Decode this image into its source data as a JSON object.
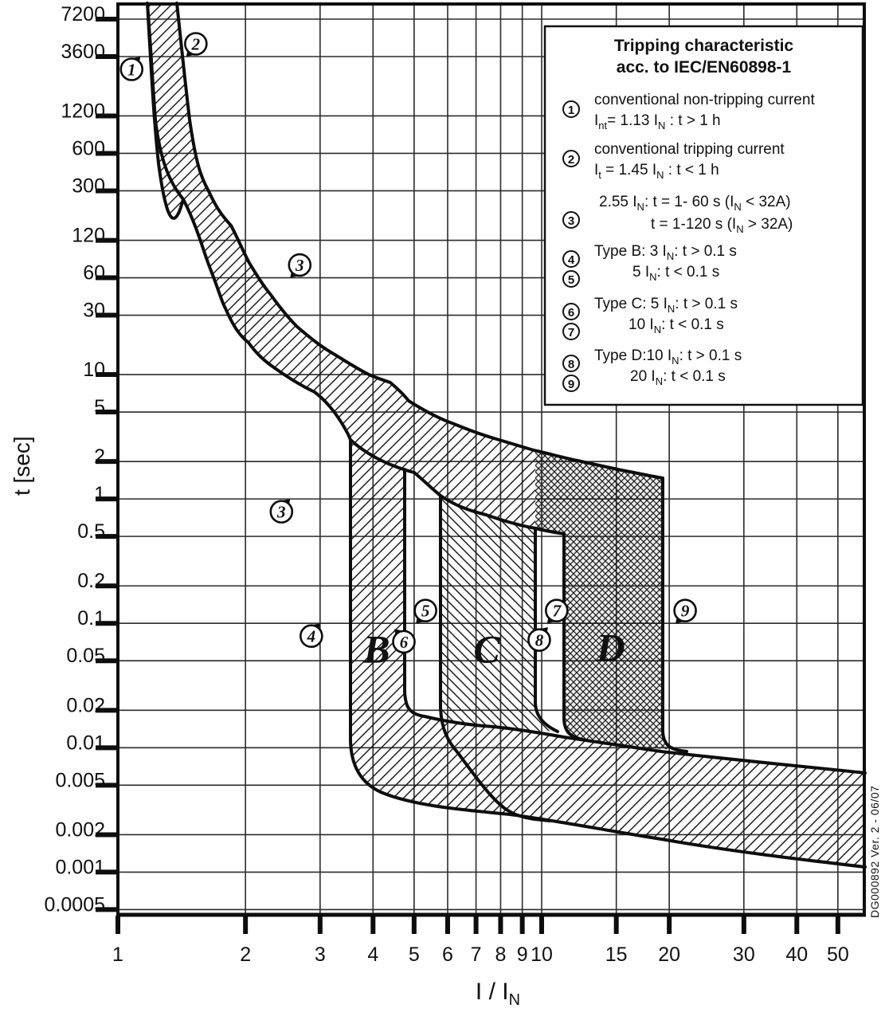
{
  "labels": {
    "y_axis_title": "t [sec]",
    "x_axis_title": "I / I[N]",
    "doc_ref": "DG000892 Ver. 2 - 06/07"
  },
  "legend": {
    "title_lines": [
      "Tripping characteristic",
      "acc. to IEC/EN60898-1"
    ],
    "items": [
      {
        "num": "1",
        "lines": [
          "conventional non-tripping current",
          "I[nt]= 1.13 I[N] : t > 1 h"
        ]
      },
      {
        "num": "2",
        "lines": [
          "conventional tripping current",
          "I[t] = 1.45 I[N] : t < 1 h"
        ]
      },
      {
        "num": "3",
        "lines": [
          "2.55 I[N]: t = 1- 60 s (I[N] < 32A)",
          "t = 1-120 s (I[N] > 32A)"
        ]
      },
      {
        "num": "4",
        "lines": [
          "Type B: 3 I[N]: t > 0.1 s"
        ]
      },
      {
        "num": "5",
        "lines": [
          "5 I[N]: t < 0.1 s"
        ]
      },
      {
        "num": "6",
        "lines": [
          "Type C: 5 I[N]: t > 0.1 s"
        ]
      },
      {
        "num": "7",
        "lines": [
          "10 I[N]: t < 0.1 s"
        ]
      },
      {
        "num": "8",
        "lines": [
          "Type D:10 I[N]: t > 0.1 s"
        ]
      },
      {
        "num": "9",
        "lines": [
          "20 I[N]: t < 0.1 s"
        ]
      }
    ]
  },
  "chart_data": {
    "type": "area",
    "title": "Tripping characteristic acc. to IEC/EN60898-1",
    "grid": "on",
    "x_axis": {
      "label": "I / I_N",
      "scale": "log",
      "range": [
        1,
        57
      ],
      "ticks": [
        "1",
        "2",
        "3",
        "4",
        "5",
        "6",
        "7",
        "8",
        "9",
        "10",
        "15",
        "20",
        "30",
        "40",
        "50"
      ]
    },
    "y_axis": {
      "label": "t [sec]",
      "scale": "log",
      "range": [
        0.0004,
        12000
      ],
      "ticks": [
        "7200",
        "3600",
        "1200",
        "600",
        "300",
        "120",
        "60",
        "30",
        "10",
        "5",
        "2",
        "1",
        "0.5",
        "0.2",
        "0.1",
        "0.05",
        "0.02",
        "0.01",
        "0.005",
        "0.002",
        "0.001",
        "0.0005"
      ]
    },
    "series": [
      {
        "name": "thermal band upper limit (1.45 I_N)",
        "points": [
          [
            1.39,
            7200
          ],
          [
            1.47,
            1500
          ],
          [
            1.64,
            300
          ],
          [
            2.04,
            77
          ],
          [
            2.3,
            43
          ],
          [
            2.65,
            24
          ],
          [
            3.2,
            15
          ],
          [
            3.9,
            10
          ],
          [
            4.4,
            8.8
          ],
          [
            4.85,
            6.3
          ],
          [
            6.2,
            4.1
          ],
          [
            7.7,
            3.1
          ],
          [
            9.6,
            2.5
          ],
          [
            12.1,
            2.1
          ],
          [
            15.4,
            1.8
          ],
          [
            19.3,
            1.5
          ]
        ]
      },
      {
        "name": "thermal band lower limit (1.13 I_N)",
        "points": [
          [
            1.18,
            7200
          ],
          [
            1.21,
            1300
          ],
          [
            1.43,
            255
          ],
          [
            1.66,
            66
          ],
          [
            1.8,
            33
          ],
          [
            2.03,
            18
          ],
          [
            2.35,
            11
          ],
          [
            2.9,
            7.2
          ],
          [
            3.5,
            3.0
          ],
          [
            5.0,
            1.6
          ],
          [
            5.8,
            1.06
          ],
          [
            7.4,
            0.74
          ],
          [
            9.7,
            0.57
          ],
          [
            11.3,
            0.52
          ]
        ]
      },
      {
        "name": "Type B instantaneous limits",
        "lower_drop_at": 3.5,
        "upper_drop_at": 4.7,
        "lower_floor": [
          [
            3.5,
            0.011
          ],
          [
            5.0,
            0.004
          ],
          [
            10,
            0.0028
          ],
          [
            57,
            0.0011
          ]
        ],
        "upper_floor": [
          [
            4.7,
            0.028
          ],
          [
            7.7,
            0.0146
          ],
          [
            19,
            0.0092
          ],
          [
            57,
            0.0062
          ]
        ]
      },
      {
        "name": "Type C instantaneous limits",
        "lower_drop_at": 5.8,
        "upper_drop_at": 9.7
      },
      {
        "name": "Type D instantaneous limits",
        "lower_drop_at": 11.3,
        "upper_drop_at": 19.3
      }
    ],
    "hatches": {
      "thermal_and_B": "/",
      "type_C": "\\",
      "type_D": "cross"
    },
    "markers": [
      {
        "label": "1",
        "I": 1.13,
        "t": 3600,
        "orient": "NE"
      },
      {
        "label": "2",
        "I": 1.45,
        "t": 3600,
        "orient": "SW"
      },
      {
        "label": "3",
        "I": 2.55,
        "t": 60,
        "orient": "SW"
      },
      {
        "label": "3",
        "I": 2.55,
        "t": 1,
        "orient": "NE"
      },
      {
        "label": "4",
        "I": 3.0,
        "t": 0.1,
        "orient": "NE"
      },
      {
        "label": "5",
        "I": 5.05,
        "t": 0.1,
        "orient": "SW"
      },
      {
        "label": "6",
        "I": 4.49,
        "t": 0.09,
        "orient": "NW"
      },
      {
        "label": "7",
        "I": 10.3,
        "t": 0.1,
        "orient": "SW"
      },
      {
        "label": "8",
        "I": 10.35,
        "t": 0.093,
        "orient": "NE"
      },
      {
        "label": "9",
        "I": 20.7,
        "t": 0.1,
        "orient": "SW"
      }
    ],
    "type_letters": [
      {
        "text": "B",
        "I": 4.08,
        "t": 0.063
      },
      {
        "text": "C",
        "I": 7.42,
        "t": 0.063
      },
      {
        "text": "D",
        "I": 14.55,
        "t": 0.065
      }
    ],
    "colors": {
      "ink": "#111111",
      "grid": "#2b2b2b",
      "background": "#ffffff"
    }
  }
}
